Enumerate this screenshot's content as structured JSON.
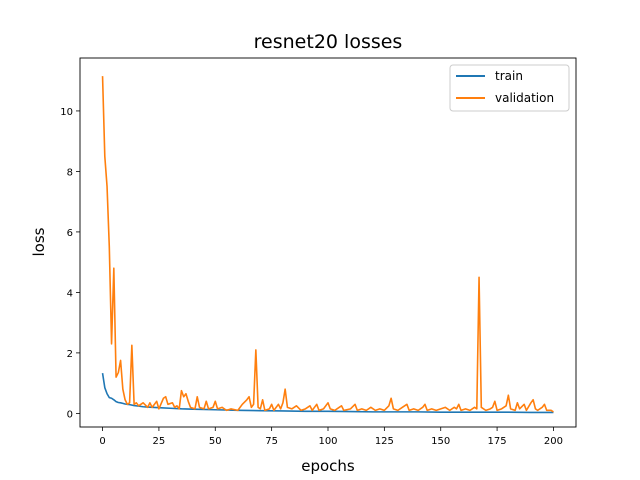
{
  "chart_data": {
    "type": "line",
    "title": "resnet20 losses",
    "xlabel": "epochs",
    "ylabel": "loss",
    "xlim": [
      -10,
      210
    ],
    "ylim": [
      -0.45,
      11.75
    ],
    "xticks": [
      0,
      25,
      50,
      75,
      100,
      125,
      150,
      175,
      200
    ],
    "yticks": [
      0,
      2,
      4,
      6,
      8,
      10
    ],
    "grid": false,
    "legend_position": "top-right",
    "series": [
      {
        "name": "train",
        "color": "#1f77b4",
        "points": [
          [
            0,
            1.33
          ],
          [
            1,
            0.85
          ],
          [
            2,
            0.65
          ],
          [
            3,
            0.52
          ],
          [
            4,
            0.5
          ],
          [
            5,
            0.45
          ],
          [
            6,
            0.39
          ],
          [
            7,
            0.36
          ],
          [
            8,
            0.35
          ],
          [
            9,
            0.33
          ],
          [
            10,
            0.31
          ],
          [
            12,
            0.29
          ],
          [
            14,
            0.26
          ],
          [
            16,
            0.24
          ],
          [
            18,
            0.22
          ],
          [
            20,
            0.21
          ],
          [
            25,
            0.19
          ],
          [
            30,
            0.17
          ],
          [
            35,
            0.15
          ],
          [
            40,
            0.14
          ],
          [
            45,
            0.13
          ],
          [
            50,
            0.12
          ],
          [
            60,
            0.1
          ],
          [
            70,
            0.09
          ],
          [
            80,
            0.08
          ],
          [
            90,
            0.07
          ],
          [
            100,
            0.07
          ],
          [
            110,
            0.06
          ],
          [
            120,
            0.05
          ],
          [
            130,
            0.05
          ],
          [
            140,
            0.05
          ],
          [
            150,
            0.04
          ],
          [
            160,
            0.04
          ],
          [
            170,
            0.04
          ],
          [
            180,
            0.04
          ],
          [
            190,
            0.03
          ],
          [
            200,
            0.03
          ]
        ]
      },
      {
        "name": "validation",
        "color": "#ff7f0e",
        "points": [
          [
            0,
            11.15
          ],
          [
            1,
            8.5
          ],
          [
            2,
            7.5
          ],
          [
            3,
            5.5
          ],
          [
            4,
            2.3
          ],
          [
            5,
            4.8
          ],
          [
            6,
            1.2
          ],
          [
            7,
            1.35
          ],
          [
            8,
            1.75
          ],
          [
            9,
            0.8
          ],
          [
            10,
            0.45
          ],
          [
            11,
            0.3
          ],
          [
            12,
            0.35
          ],
          [
            13,
            2.25
          ],
          [
            14,
            0.3
          ],
          [
            15,
            0.35
          ],
          [
            16,
            0.25
          ],
          [
            18,
            0.35
          ],
          [
            20,
            0.2
          ],
          [
            21,
            0.35
          ],
          [
            22,
            0.2
          ],
          [
            24,
            0.4
          ],
          [
            25,
            0.15
          ],
          [
            27,
            0.5
          ],
          [
            28,
            0.55
          ],
          [
            29,
            0.3
          ],
          [
            31,
            0.35
          ],
          [
            32,
            0.2
          ],
          [
            33,
            0.25
          ],
          [
            34,
            0.15
          ],
          [
            35,
            0.75
          ],
          [
            36,
            0.55
          ],
          [
            37,
            0.65
          ],
          [
            38,
            0.4
          ],
          [
            39,
            0.2
          ],
          [
            41,
            0.15
          ],
          [
            42,
            0.55
          ],
          [
            43,
            0.2
          ],
          [
            45,
            0.15
          ],
          [
            46,
            0.4
          ],
          [
            47,
            0.15
          ],
          [
            49,
            0.2
          ],
          [
            50,
            0.4
          ],
          [
            51,
            0.15
          ],
          [
            53,
            0.2
          ],
          [
            55,
            0.1
          ],
          [
            57,
            0.15
          ],
          [
            60,
            0.1
          ],
          [
            62,
            0.3
          ],
          [
            64,
            0.45
          ],
          [
            65,
            0.55
          ],
          [
            66,
            0.2
          ],
          [
            67,
            0.3
          ],
          [
            68,
            2.1
          ],
          [
            69,
            0.2
          ],
          [
            70,
            0.15
          ],
          [
            71,
            0.45
          ],
          [
            72,
            0.1
          ],
          [
            74,
            0.15
          ],
          [
            75,
            0.3
          ],
          [
            76,
            0.1
          ],
          [
            78,
            0.3
          ],
          [
            79,
            0.15
          ],
          [
            80,
            0.35
          ],
          [
            81,
            0.8
          ],
          [
            82,
            0.2
          ],
          [
            84,
            0.15
          ],
          [
            86,
            0.25
          ],
          [
            88,
            0.1
          ],
          [
            90,
            0.15
          ],
          [
            92,
            0.25
          ],
          [
            93,
            0.1
          ],
          [
            95,
            0.3
          ],
          [
            96,
            0.1
          ],
          [
            98,
            0.15
          ],
          [
            100,
            0.35
          ],
          [
            101,
            0.15
          ],
          [
            103,
            0.1
          ],
          [
            105,
            0.2
          ],
          [
            106,
            0.25
          ],
          [
            107,
            0.1
          ],
          [
            110,
            0.15
          ],
          [
            112,
            0.3
          ],
          [
            113,
            0.1
          ],
          [
            115,
            0.15
          ],
          [
            117,
            0.1
          ],
          [
            119,
            0.2
          ],
          [
            121,
            0.1
          ],
          [
            123,
            0.15
          ],
          [
            125,
            0.1
          ],
          [
            127,
            0.25
          ],
          [
            128,
            0.5
          ],
          [
            129,
            0.15
          ],
          [
            131,
            0.1
          ],
          [
            133,
            0.2
          ],
          [
            135,
            0.3
          ],
          [
            136,
            0.1
          ],
          [
            138,
            0.15
          ],
          [
            140,
            0.1
          ],
          [
            142,
            0.2
          ],
          [
            143,
            0.3
          ],
          [
            144,
            0.1
          ],
          [
            146,
            0.15
          ],
          [
            148,
            0.1
          ],
          [
            150,
            0.15
          ],
          [
            152,
            0.2
          ],
          [
            154,
            0.1
          ],
          [
            156,
            0.2
          ],
          [
            157,
            0.15
          ],
          [
            158,
            0.3
          ],
          [
            159,
            0.1
          ],
          [
            161,
            0.15
          ],
          [
            163,
            0.1
          ],
          [
            165,
            0.2
          ],
          [
            166,
            0.15
          ],
          [
            167,
            4.5
          ],
          [
            168,
            0.2
          ],
          [
            170,
            0.1
          ],
          [
            172,
            0.15
          ],
          [
            173,
            0.2
          ],
          [
            174,
            0.4
          ],
          [
            175,
            0.1
          ],
          [
            177,
            0.15
          ],
          [
            179,
            0.25
          ],
          [
            180,
            0.6
          ],
          [
            181,
            0.15
          ],
          [
            183,
            0.1
          ],
          [
            184,
            0.35
          ],
          [
            185,
            0.15
          ],
          [
            187,
            0.3
          ],
          [
            188,
            0.1
          ],
          [
            190,
            0.35
          ],
          [
            191,
            0.45
          ],
          [
            192,
            0.15
          ],
          [
            193,
            0.1
          ],
          [
            195,
            0.2
          ],
          [
            196,
            0.3
          ],
          [
            197,
            0.1
          ],
          [
            199,
            0.1
          ],
          [
            200,
            0.05
          ]
        ]
      }
    ]
  }
}
